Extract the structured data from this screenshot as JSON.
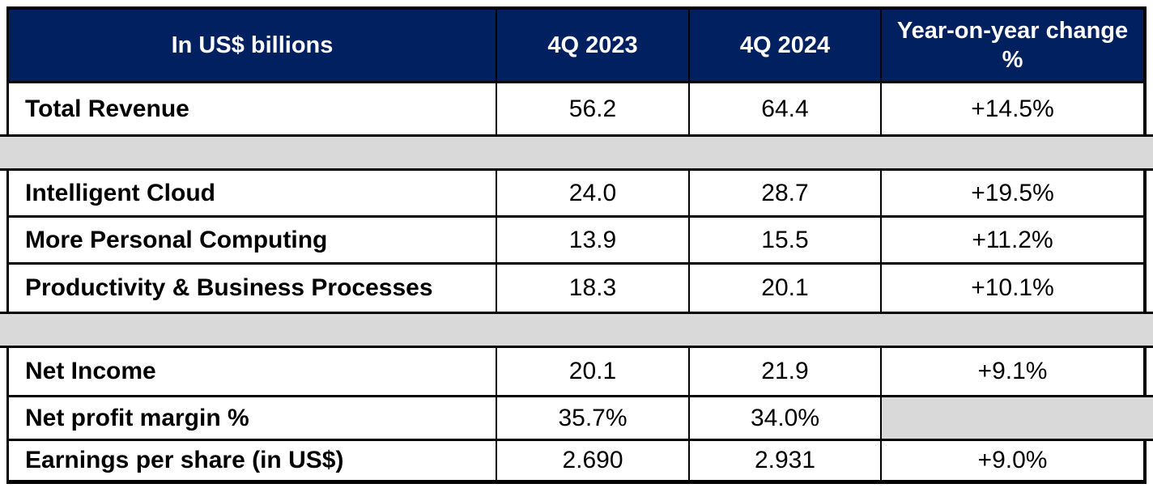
{
  "table": {
    "header": {
      "unit_label": "In US$ billions",
      "col_2023": "4Q 2023",
      "col_2024": "4Q 2024",
      "col_yoy": "Year-on-year change %"
    },
    "rows": [
      {
        "type": "data",
        "label": "Total Revenue",
        "v2023": "56.2",
        "v2024": "64.4",
        "yoy": "+14.5%"
      },
      {
        "type": "spacer"
      },
      {
        "type": "data",
        "label": "Intelligent Cloud",
        "v2023": "24.0",
        "v2024": "28.7",
        "yoy": "+19.5%"
      },
      {
        "type": "data",
        "label": "More Personal Computing",
        "v2023": "13.9",
        "v2024": "15.5",
        "yoy": "+11.2%"
      },
      {
        "type": "data",
        "label": "Productivity & Business Processes",
        "v2023": "18.3",
        "v2024": "20.1",
        "yoy": "+10.1%"
      },
      {
        "type": "spacer"
      },
      {
        "type": "data",
        "label": "Net Income",
        "v2023": "20.1",
        "v2024": "21.9",
        "yoy": "+9.1%"
      },
      {
        "type": "data",
        "label": "Net profit margin %",
        "v2023": "35.7%",
        "v2024": "34.0%",
        "yoy": ""
      },
      {
        "type": "data",
        "label": "Earnings per share (in US$)",
        "v2023": "2.690",
        "v2024": "2.931",
        "yoy": "+9.0%"
      }
    ]
  },
  "colors": {
    "header_bg": "#002060",
    "header_text": "#FFFFFF",
    "spacer_bg": "#D9D9D9",
    "border": "#000000",
    "body_text": "#000000"
  },
  "chart_data": {
    "type": "table",
    "title": "In US$ billions",
    "columns": [
      "In US$ billions",
      "4Q 2023",
      "4Q 2024",
      "Year-on-year change %"
    ],
    "rows": [
      [
        "Total Revenue",
        56.2,
        64.4,
        "+14.5%"
      ],
      [
        "Intelligent Cloud",
        24.0,
        28.7,
        "+19.5%"
      ],
      [
        "More Personal Computing",
        13.9,
        15.5,
        "+11.2%"
      ],
      [
        "Productivity & Business Processes",
        18.3,
        20.1,
        "+10.1%"
      ],
      [
        "Net Income",
        20.1,
        21.9,
        "+9.1%"
      ],
      [
        "Net profit margin %",
        "35.7%",
        "34.0%",
        ""
      ],
      [
        "Earnings per share (in US$)",
        2.69,
        2.931,
        "+9.0%"
      ]
    ],
    "notes": "Gray spacer bands separate Total Revenue, segment breakdown, and profitability sections; Year-on-year cell for Net profit margin % is blank gray."
  }
}
